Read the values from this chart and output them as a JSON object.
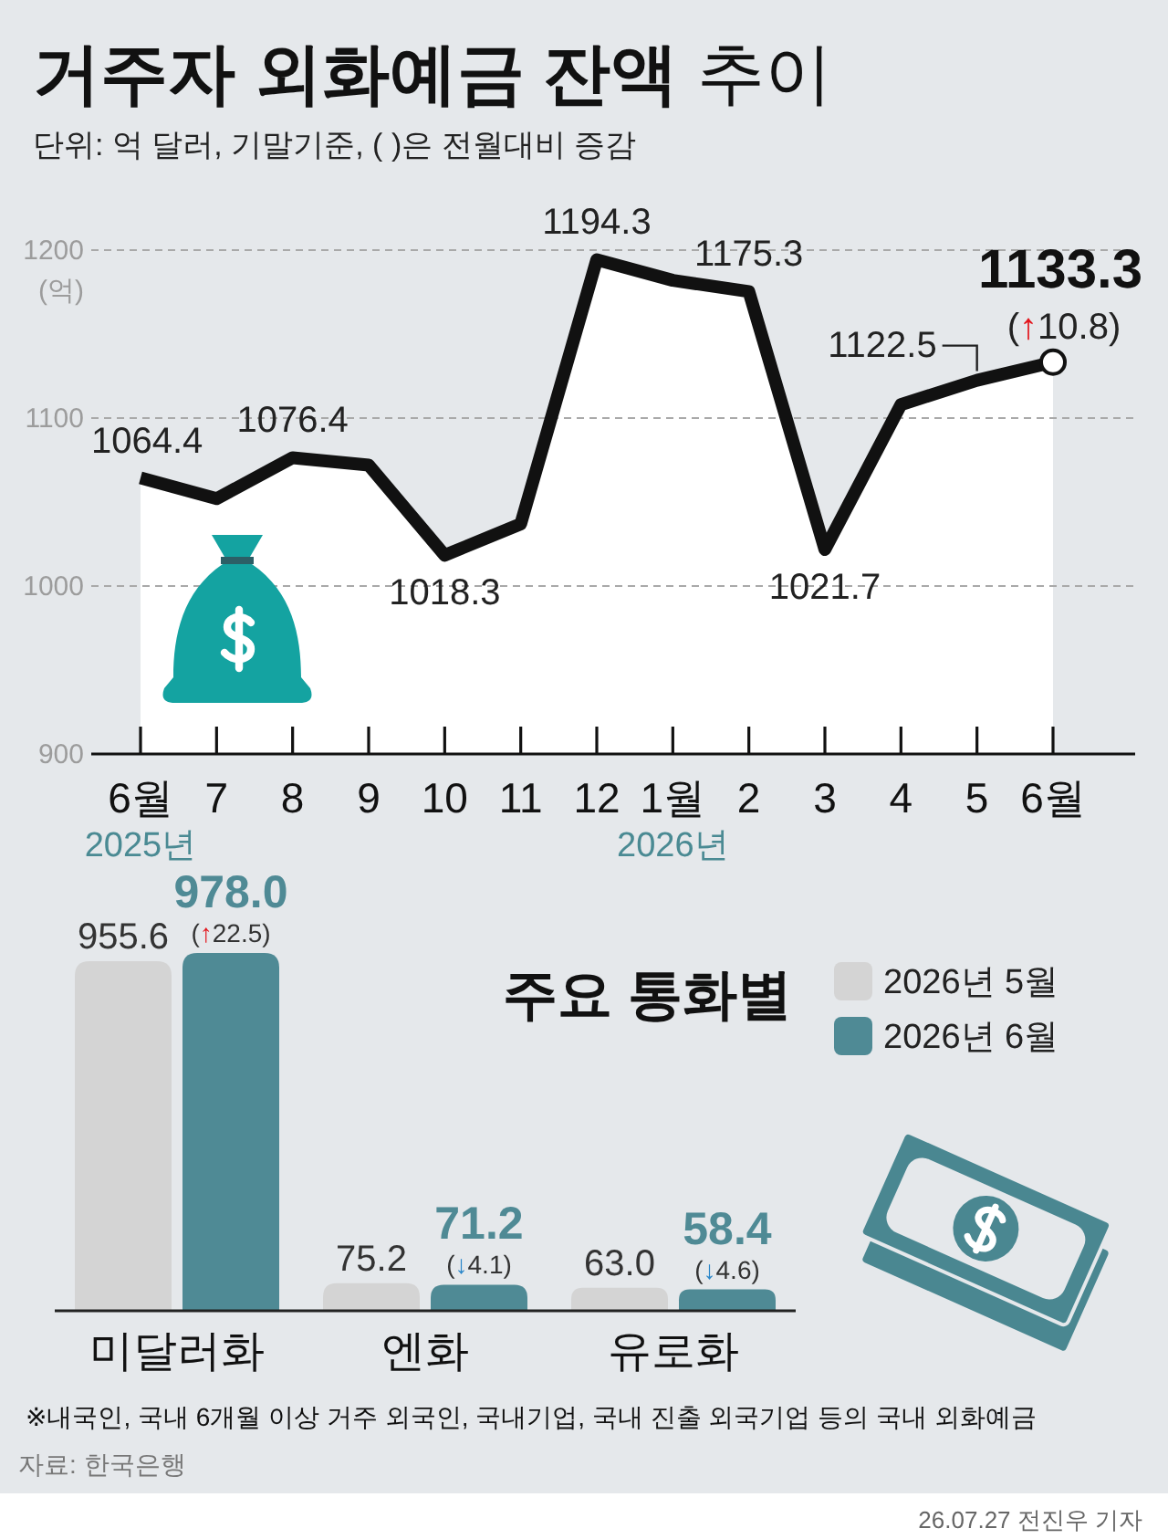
{
  "chart_data": [
    {
      "type": "area",
      "title": "거주자 외화예금 잔액 추이",
      "subtitle": "단위: 억 달러, 기말기준, ( )은 전월대비 증감",
      "ylabel": "(억)",
      "categories": [
        "6월\n2025년",
        "7",
        "8",
        "9",
        "10",
        "11",
        "12",
        "1월\n2026년",
        "2",
        "3",
        "4",
        "5",
        "6월"
      ],
      "series": [
        {
          "color": "#111111",
          "values": [
            1064.4,
            1052,
            1076.4,
            1072,
            1018.3,
            1037,
            1194.3,
            1182,
            1175.3,
            1021.7,
            1108,
            1122.5,
            1133.3
          ],
          "value_labels": [
            "1064.4",
            null,
            "1076.4",
            null,
            "1018.3",
            null,
            "1194.3",
            null,
            "1175.3",
            "1021.7",
            null,
            "1122.5",
            "1133.3"
          ]
        }
      ],
      "ylim": [
        900,
        1200
      ],
      "yticks": [
        900,
        1000,
        1100,
        1200
      ],
      "grid": "y",
      "line_style": "solid",
      "annotations": [
        {
          "text": "(↑10.8)",
          "x": "6월",
          "y": 1133.3
        }
      ]
    },
    {
      "type": "bar",
      "title": "주요 통화별",
      "categories": [
        "미달러화",
        "엔화",
        "유로화"
      ],
      "series": [
        {
          "name": "2026년 5월",
          "color": "#d4d4d4",
          "values": [
            955.6,
            75.2,
            63.0
          ],
          "value_labels": [
            "955.6",
            "75.2",
            "63.0"
          ]
        },
        {
          "name": "2026년 6월",
          "color": "#4f8a95",
          "values": [
            978.0,
            71.2,
            58.4
          ],
          "value_labels": [
            "978.0",
            "71.2",
            "58.4"
          ]
        }
      ],
      "legend": "top right",
      "annotations": [
        "(↑22.5)",
        {
          "text": "(↓4.1)",
          "x": "엔화",
          "y": 71.2
        },
        {
          "text": "(↓4.6)",
          "x": "유로화",
          "y": 58.4
        },
        "※내국인, 국내 6개월 이상 거주 외국인, 국내기업, 국내 진출 외국기업 등의 국내 외화예금",
        "자료: 한국은행",
        "26.07.27 전진우 기자"
      ]
    }
  ]
}
